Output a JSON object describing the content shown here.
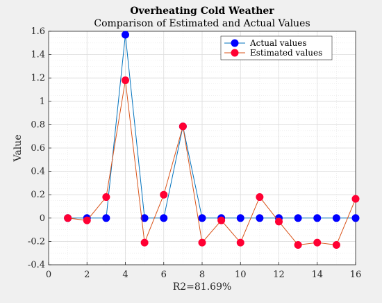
{
  "chart_data": {
    "type": "line",
    "title": "Overheating Cold Weather",
    "subtitle": "Comparison of Estimated and Actual Values",
    "xlabel": "R2=81.69%",
    "ylabel": "Value",
    "xlim": [
      0,
      16
    ],
    "ylim": [
      -0.4,
      1.6
    ],
    "xticks": [
      0,
      2,
      4,
      6,
      8,
      10,
      12,
      14,
      16
    ],
    "yticks": [
      -0.4,
      -0.2,
      0,
      0.2,
      0.4,
      0.6,
      0.8,
      1,
      1.2,
      1.4,
      1.6
    ],
    "grid": true,
    "legend_position": "top-right",
    "x": [
      1,
      2,
      3,
      4,
      5,
      6,
      7,
      8,
      9,
      10,
      11,
      12,
      13,
      14,
      15,
      16
    ],
    "series": [
      {
        "name": "Actual values",
        "color": "#0072BD",
        "marker_color": "#0000FF",
        "values": [
          0,
          0,
          0,
          1.57,
          0,
          0,
          0.785,
          0,
          0,
          0,
          0,
          0,
          0,
          0,
          0,
          0
        ]
      },
      {
        "name": "Estimated values",
        "color": "#D95319",
        "marker_color": "#FF0033",
        "values": [
          0,
          -0.02,
          0.18,
          1.18,
          -0.21,
          0.2,
          0.785,
          -0.21,
          -0.02,
          -0.21,
          0.18,
          -0.03,
          -0.23,
          -0.21,
          -0.23,
          0.165
        ]
      }
    ]
  }
}
